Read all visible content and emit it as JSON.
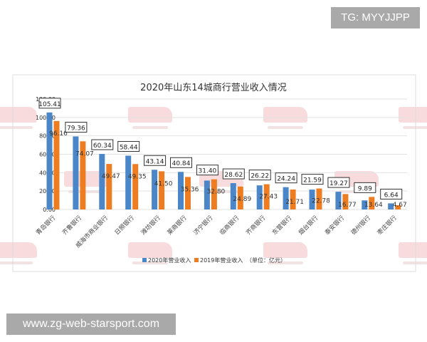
{
  "overlay": {
    "badge": "TG: MYYJJPP",
    "url": "www.zg-web-starsport.com"
  },
  "watermark": {
    "logo": "sbn",
    "sub": "山东财经报道"
  },
  "colors": {
    "series_2020": "#4a86c8",
    "series_2019": "#ee7d22"
  },
  "chart_data": {
    "type": "bar",
    "title": "2020年山东14城商行营业收入情况",
    "categories": [
      "青岛银行",
      "齐鲁银行",
      "威海市商业银行",
      "日照银行",
      "潍坊银行",
      "莱商银行",
      "济宁银行",
      "临商银行",
      "齐商银行",
      "东营银行",
      "烟台银行",
      "泰安银行",
      "德州银行",
      "枣庄银行"
    ],
    "series": [
      {
        "name": "2020年营业收入",
        "values": [
          105.41,
          79.36,
          60.34,
          58.44,
          43.14,
          40.84,
          31.4,
          28.62,
          26.22,
          24.24,
          21.59,
          19.27,
          9.89,
          6.64
        ]
      },
      {
        "name": "2019年营业收入",
        "values": [
          96.16,
          74.07,
          49.47,
          49.35,
          41.5,
          35.36,
          32.8,
          24.89,
          27.43,
          21.71,
          22.78,
          16.77,
          13.64,
          4.67
        ]
      }
    ],
    "unit_note": "（单位：亿元）",
    "yticks": [
      "0.00",
      "20.00",
      "40.00",
      "60.00",
      "80.00",
      "100.00",
      "120.00"
    ],
    "ylim": [
      0,
      120
    ],
    "grid": true,
    "legend": "bottom"
  }
}
